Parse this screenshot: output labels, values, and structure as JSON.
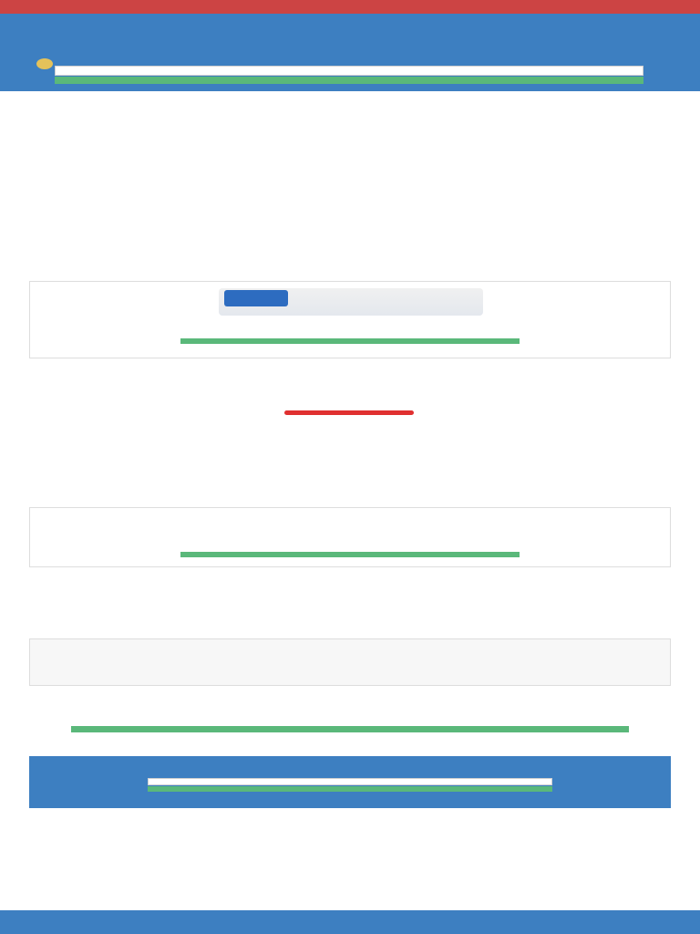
{
  "top_banner": {
    "text": ""
  },
  "header": {
    "nav_left": "",
    "logo": "",
    "nav_right": "",
    "title": "",
    "byline": "",
    "email_placeholder": "",
    "cta": "",
    "note": ""
  },
  "article": {
    "intro_1": "",
    "intro_2": "",
    "h2_1": "",
    "p_1": "",
    "h3_free": "",
    "p_free_1": "",
    "p_free_2": "",
    "p_free_3": "",
    "product_1": {
      "title": "",
      "desc": "",
      "cta": "",
      "note": ""
    },
    "h3_combined": "",
    "p_combined_1": "",
    "p_combined_2": "",
    "h3_total": "",
    "p_total": "",
    "h3_put": "",
    "p_put_1": "",
    "p_put_2": "",
    "product_2": {
      "title": "",
      "desc": "",
      "cta": "",
      "note": ""
    },
    "h2_2": "",
    "p_2_1": "",
    "p_2_2": "",
    "closing": "",
    "bio": "",
    "promo": {
      "title": "",
      "desc": "",
      "cta": ""
    }
  },
  "subscribe": {
    "title": "",
    "email_placeholder": "",
    "cta": "",
    "note": ""
  },
  "recommended": {
    "heading": "",
    "items": [
      {
        "title": "",
        "desc": ""
      },
      {
        "title": "",
        "desc": ""
      },
      {
        "title": "",
        "desc": ""
      },
      {
        "title": "",
        "desc": ""
      }
    ]
  },
  "footer": {
    "copyright": "",
    "links": ""
  },
  "colors": {
    "brand_blue": "#3d7fc1",
    "accent_orange": "#e8a437",
    "cta_green": "#5ab87a",
    "top_bar_red": "#cc4444"
  }
}
